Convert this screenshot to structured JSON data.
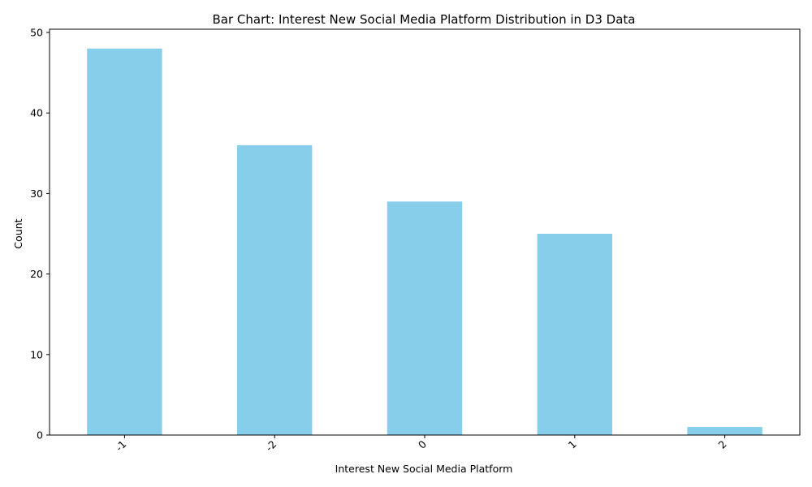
{
  "chart_data": {
    "type": "bar",
    "title": "Bar Chart: Interest New Social Media Platform Distribution in D3 Data",
    "xlabel": "Interest New Social Media Platform",
    "ylabel": "Count",
    "categories": [
      "-1",
      "-2",
      "0",
      "1",
      "2"
    ],
    "values": [
      48,
      36,
      29,
      25,
      1
    ],
    "ylim": [
      0,
      50.4
    ],
    "yticks": [
      0,
      10,
      20,
      30,
      40,
      50
    ],
    "grid": false,
    "bar_color": "#87ceeb",
    "xtick_rotation": -45
  }
}
